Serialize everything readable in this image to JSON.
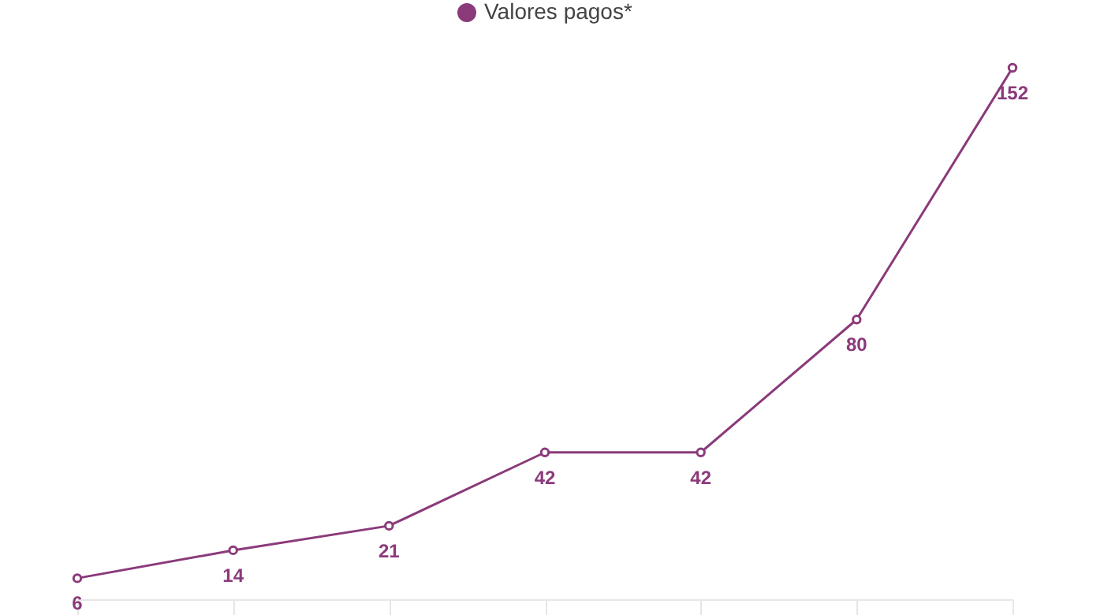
{
  "chart_data": {
    "type": "line",
    "categories": [
      null,
      null,
      null,
      null,
      null,
      null,
      null
    ],
    "series": [
      {
        "name": "Valores pagos*",
        "color": "#8b3a7a",
        "values": [
          6,
          14,
          21,
          42,
          42,
          80,
          152
        ]
      }
    ],
    "marker": "circle",
    "data_labels": true,
    "legend": "top",
    "grid": false
  }
}
